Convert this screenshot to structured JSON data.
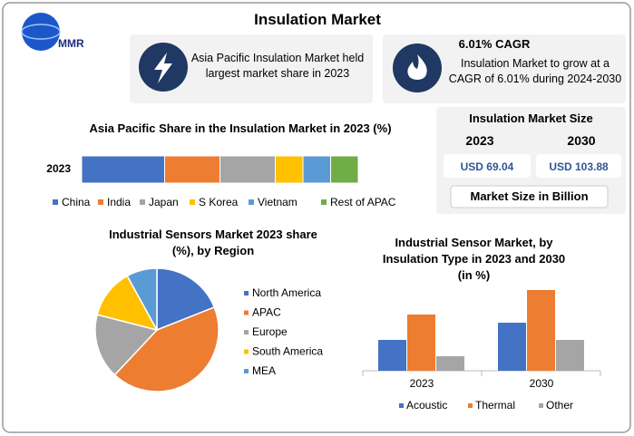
{
  "header": {
    "logo": "MMR",
    "title": "Insulation Market"
  },
  "cards": [
    {
      "lines": [
        "Asia Pacific Insulation Market held",
        "largest market share in 2023"
      ]
    },
    {
      "title": "6.01% CAGR",
      "lines": [
        "Insulation Market to grow at a",
        "CAGR of 6.01% during 2024-2030"
      ]
    }
  ],
  "market_size": {
    "title": "Insulation Market Size",
    "years": [
      "2023",
      "2030"
    ],
    "values": [
      "USD 69.04",
      "USD 103.88"
    ],
    "footer": "Market Size in Billion"
  },
  "chart_data": [
    {
      "type": "bar",
      "stacked": true,
      "orientation": "horizontal",
      "title": "Asia Pacific Share in the Insulation Market in 2023 (%)",
      "categories": [
        "2023"
      ],
      "series": [
        {
          "name": "China",
          "color": "#4472c4",
          "values": [
            30
          ]
        },
        {
          "name": "India",
          "color": "#ed7d31",
          "values": [
            20
          ]
        },
        {
          "name": "Japan",
          "color": "#a5a5a5",
          "values": [
            20
          ]
        },
        {
          "name": "S Korea",
          "color": "#ffc000",
          "values": [
            10
          ]
        },
        {
          "name": "Vietnam",
          "color": "#5b9bd5",
          "values": [
            10
          ]
        },
        {
          "name": "Rest of APAC",
          "color": "#70ad47",
          "values": [
            10
          ]
        }
      ]
    },
    {
      "type": "pie",
      "title": "Industrial Sensors Market 2023 share (%), by Region",
      "categories": [
        "North America",
        "APAC",
        "Europe",
        "South America",
        "MEA"
      ],
      "values": [
        19,
        43,
        17,
        13,
        8
      ],
      "colors": [
        "#4472c4",
        "#ed7d31",
        "#a5a5a5",
        "#ffc000",
        "#5b9bd5"
      ]
    },
    {
      "type": "bar",
      "title": "Industrial Sensor Market, by Insulation Type in 2023 and 2030 (in %)",
      "categories": [
        "2023",
        "2030"
      ],
      "series": [
        {
          "name": "Acoustic",
          "color": "#4472c4",
          "values": [
            34,
            53
          ]
        },
        {
          "name": "Thermal",
          "color": "#ed7d31",
          "values": [
            62,
            89
          ]
        },
        {
          "name": "Other",
          "color": "#a5a5a5",
          "values": [
            16,
            34
          ]
        }
      ]
    }
  ]
}
